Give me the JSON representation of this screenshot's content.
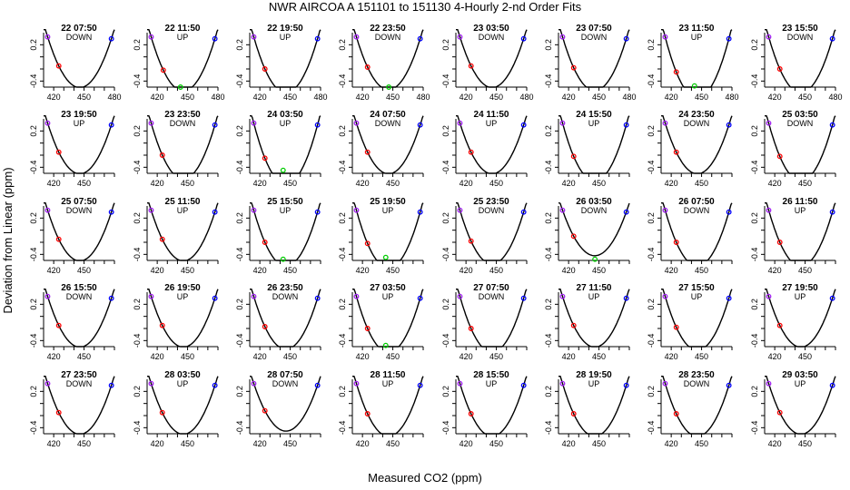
{
  "title": "NWR   AIRCOA A   151101 to 151130   4-Hourly 2-nd Order Fits",
  "xlabel": "Measured CO2 (ppm)",
  "ylabel": "Deviation from Linear (ppm)",
  "colors": {
    "curve": "#000000",
    "open_point_purple": "#a020f0",
    "open_point_red": "#ff0000",
    "open_point_blue": "#0000ff",
    "green_point": "#00cc00"
  },
  "chart_data": {
    "type": "scatter",
    "layout_grid": "5 rows x 8 columns of small multiples",
    "ylim": [
      -0.5,
      0.4
    ],
    "yticks": [
      -0.4,
      0.2
    ],
    "x_ticks_wide": [
      420,
      450,
      480
    ],
    "x_ticks_narrow": [
      420,
      450
    ],
    "panels": [
      {
        "title": "22 07:50",
        "direction": "DOWN",
        "xlim": [
          410,
          480
        ],
        "xticks": [
          420,
          450,
          480
        ],
        "points": [
          [
            414,
            0.33
          ],
          [
            425,
            -0.15
          ],
          [
            477,
            0.3
          ]
        ]
      },
      {
        "title": "22 11:50",
        "direction": "UP",
        "xlim": [
          410,
          480
        ],
        "xticks": [
          420,
          450,
          480
        ],
        "points": [
          [
            414,
            0.33
          ],
          [
            426,
            -0.22
          ],
          [
            443,
            -0.5
          ],
          [
            477,
            0.3
          ]
        ]
      },
      {
        "title": "22 19:50",
        "direction": "UP",
        "xlim": [
          410,
          480
        ],
        "xticks": [
          420,
          450,
          480
        ],
        "points": [
          [
            414,
            0.33
          ],
          [
            425,
            -0.2
          ],
          [
            477,
            0.3
          ]
        ]
      },
      {
        "title": "22 23:50",
        "direction": "DOWN",
        "xlim": [
          410,
          480
        ],
        "xticks": [
          420,
          450,
          480
        ],
        "points": [
          [
            414,
            0.33
          ],
          [
            425,
            -0.17
          ],
          [
            446,
            -0.5
          ],
          [
            477,
            0.3
          ]
        ]
      },
      {
        "title": "23 03:50",
        "direction": "DOWN",
        "xlim": [
          410,
          480
        ],
        "xticks": [
          420,
          450,
          480
        ],
        "points": [
          [
            414,
            0.33
          ],
          [
            425,
            -0.15
          ],
          [
            477,
            0.3
          ]
        ]
      },
      {
        "title": "23 07:50",
        "direction": "DOWN",
        "xlim": [
          410,
          480
        ],
        "xticks": [
          420,
          450,
          480
        ],
        "points": [
          [
            414,
            0.33
          ],
          [
            425,
            -0.18
          ],
          [
            477,
            0.3
          ]
        ]
      },
      {
        "title": "23 11:50",
        "direction": "UP",
        "xlim": [
          410,
          480
        ],
        "xticks": [
          420,
          450,
          480
        ],
        "points": [
          [
            414,
            0.33
          ],
          [
            425,
            -0.25
          ],
          [
            443,
            -0.48
          ],
          [
            477,
            0.3
          ]
        ]
      },
      {
        "title": "23 15:50",
        "direction": "DOWN",
        "xlim": [
          410,
          480
        ],
        "xticks": [
          420,
          450,
          480
        ],
        "points": [
          [
            414,
            0.33
          ],
          [
            425,
            -0.2
          ],
          [
            477,
            0.3
          ]
        ]
      },
      {
        "title": "23 19:50",
        "direction": "UP",
        "xlim": [
          410,
          480
        ],
        "xticks": [
          420,
          450
        ],
        "points": [
          [
            414,
            0.33
          ],
          [
            425,
            -0.15
          ],
          [
            477,
            0.3
          ]
        ]
      },
      {
        "title": "23 23:50",
        "direction": "DOWN",
        "xlim": [
          410,
          480
        ],
        "xticks": [
          420,
          450
        ],
        "points": [
          [
            414,
            0.33
          ],
          [
            425,
            -0.2
          ],
          [
            477,
            0.3
          ]
        ]
      },
      {
        "title": "24 03:50",
        "direction": "UP",
        "xlim": [
          410,
          480
        ],
        "xticks": [
          420,
          450
        ],
        "points": [
          [
            414,
            0.33
          ],
          [
            425,
            -0.25
          ],
          [
            443,
            -0.45
          ],
          [
            477,
            0.3
          ]
        ]
      },
      {
        "title": "24 07:50",
        "direction": "DOWN",
        "xlim": [
          410,
          480
        ],
        "xticks": [
          420,
          450
        ],
        "points": [
          [
            414,
            0.33
          ],
          [
            425,
            -0.15
          ],
          [
            477,
            0.3
          ]
        ]
      },
      {
        "title": "24 11:50",
        "direction": "UP",
        "xlim": [
          410,
          480
        ],
        "xticks": [
          420,
          450
        ],
        "points": [
          [
            414,
            0.33
          ],
          [
            425,
            -0.15
          ],
          [
            477,
            0.3
          ]
        ]
      },
      {
        "title": "24 15:50",
        "direction": "UP",
        "xlim": [
          410,
          480
        ],
        "xticks": [
          420,
          450
        ],
        "points": [
          [
            414,
            0.33
          ],
          [
            425,
            -0.22
          ],
          [
            477,
            0.3
          ]
        ]
      },
      {
        "title": "24 23:50",
        "direction": "DOWN",
        "xlim": [
          410,
          480
        ],
        "xticks": [
          420,
          450
        ],
        "points": [
          [
            414,
            0.33
          ],
          [
            425,
            -0.15
          ],
          [
            477,
            0.3
          ]
        ]
      },
      {
        "title": "25 03:50",
        "direction": "DOWN",
        "xlim": [
          410,
          480
        ],
        "xticks": [
          420,
          450
        ],
        "points": [
          [
            414,
            0.33
          ],
          [
            425,
            -0.22
          ],
          [
            477,
            0.3
          ]
        ]
      },
      {
        "title": "25 07:50",
        "direction": "DOWN",
        "xlim": [
          410,
          480
        ],
        "xticks": [
          420,
          450
        ],
        "points": [
          [
            414,
            0.33
          ],
          [
            425,
            -0.15
          ],
          [
            477,
            0.3
          ]
        ]
      },
      {
        "title": "25 11:50",
        "direction": "UP",
        "xlim": [
          410,
          480
        ],
        "xticks": [
          420,
          450
        ],
        "points": [
          [
            414,
            0.33
          ],
          [
            425,
            -0.15
          ],
          [
            477,
            0.3
          ]
        ]
      },
      {
        "title": "25 15:50",
        "direction": "UP",
        "xlim": [
          410,
          480
        ],
        "xticks": [
          420,
          450
        ],
        "points": [
          [
            414,
            0.33
          ],
          [
            425,
            -0.2
          ],
          [
            443,
            -0.48
          ],
          [
            477,
            0.3
          ]
        ]
      },
      {
        "title": "25 19:50",
        "direction": "UP",
        "xlim": [
          410,
          480
        ],
        "xticks": [
          420,
          450
        ],
        "points": [
          [
            414,
            0.33
          ],
          [
            425,
            -0.22
          ],
          [
            443,
            -0.45
          ],
          [
            477,
            0.3
          ]
        ]
      },
      {
        "title": "25 23:50",
        "direction": "DOWN",
        "xlim": [
          410,
          480
        ],
        "xticks": [
          420,
          450
        ],
        "points": [
          [
            414,
            0.33
          ],
          [
            425,
            -0.18
          ],
          [
            477,
            0.3
          ]
        ]
      },
      {
        "title": "26 03:50",
        "direction": "DOWN",
        "xlim": [
          410,
          480
        ],
        "xticks": [
          420,
          450
        ],
        "points": [
          [
            414,
            0.33
          ],
          [
            425,
            -0.1
          ],
          [
            446,
            -0.48
          ],
          [
            477,
            0.3
          ]
        ]
      },
      {
        "title": "26 07:50",
        "direction": "DOWN",
        "xlim": [
          410,
          480
        ],
        "xticks": [
          420,
          450
        ],
        "points": [
          [
            414,
            0.33
          ],
          [
            425,
            -0.2
          ],
          [
            477,
            0.3
          ]
        ]
      },
      {
        "title": "26 11:50",
        "direction": "UP",
        "xlim": [
          410,
          480
        ],
        "xticks": [
          420,
          450
        ],
        "points": [
          [
            414,
            0.33
          ],
          [
            425,
            -0.2
          ],
          [
            477,
            0.3
          ]
        ]
      },
      {
        "title": "26 15:50",
        "direction": "DOWN",
        "xlim": [
          410,
          480
        ],
        "xticks": [
          420,
          450
        ],
        "points": [
          [
            414,
            0.33
          ],
          [
            425,
            -0.15
          ],
          [
            477,
            0.3
          ]
        ]
      },
      {
        "title": "26 19:50",
        "direction": "UP",
        "xlim": [
          410,
          480
        ],
        "xticks": [
          420,
          450
        ],
        "points": [
          [
            414,
            0.33
          ],
          [
            425,
            -0.15
          ],
          [
            477,
            0.3
          ]
        ]
      },
      {
        "title": "26 23:50",
        "direction": "DOWN",
        "xlim": [
          410,
          480
        ],
        "xticks": [
          420,
          450
        ],
        "points": [
          [
            414,
            0.33
          ],
          [
            425,
            -0.17
          ],
          [
            477,
            0.3
          ]
        ]
      },
      {
        "title": "27 03:50",
        "direction": "UP",
        "xlim": [
          410,
          480
        ],
        "xticks": [
          420,
          450
        ],
        "points": [
          [
            414,
            0.33
          ],
          [
            425,
            -0.2
          ],
          [
            443,
            -0.48
          ],
          [
            477,
            0.3
          ]
        ]
      },
      {
        "title": "27 07:50",
        "direction": "DOWN",
        "xlim": [
          410,
          480
        ],
        "xticks": [
          420,
          450
        ],
        "points": [
          [
            414,
            0.33
          ],
          [
            425,
            -0.2
          ],
          [
            477,
            0.3
          ]
        ]
      },
      {
        "title": "27 11:50",
        "direction": "UP",
        "xlim": [
          410,
          480
        ],
        "xticks": [
          420,
          450
        ],
        "points": [
          [
            414,
            0.33
          ],
          [
            425,
            -0.15
          ],
          [
            477,
            0.3
          ]
        ]
      },
      {
        "title": "27 15:50",
        "direction": "UP",
        "xlim": [
          410,
          480
        ],
        "xticks": [
          420,
          450
        ],
        "points": [
          [
            414,
            0.33
          ],
          [
            425,
            -0.18
          ],
          [
            477,
            0.3
          ]
        ]
      },
      {
        "title": "27 19:50",
        "direction": "UP",
        "xlim": [
          410,
          480
        ],
        "xticks": [
          420,
          450
        ],
        "points": [
          [
            414,
            0.33
          ],
          [
            425,
            -0.15
          ],
          [
            477,
            0.3
          ]
        ]
      },
      {
        "title": "27 23:50",
        "direction": "DOWN",
        "xlim": [
          410,
          480
        ],
        "xticks": [
          420,
          450
        ],
        "points": [
          [
            414,
            0.33
          ],
          [
            425,
            -0.15
          ],
          [
            477,
            0.3
          ]
        ]
      },
      {
        "title": "28 03:50",
        "direction": "UP",
        "xlim": [
          410,
          480
        ],
        "xticks": [
          420,
          450
        ],
        "points": [
          [
            414,
            0.33
          ],
          [
            425,
            -0.15
          ],
          [
            477,
            0.3
          ]
        ]
      },
      {
        "title": "28 07:50",
        "direction": "DOWN",
        "xlim": [
          410,
          480
        ],
        "xticks": [
          420,
          450
        ],
        "points": [
          [
            414,
            0.33
          ],
          [
            425,
            -0.12
          ],
          [
            477,
            0.3
          ]
        ]
      },
      {
        "title": "28 11:50",
        "direction": "UP",
        "xlim": [
          410,
          480
        ],
        "xticks": [
          420,
          450
        ],
        "points": [
          [
            414,
            0.33
          ],
          [
            425,
            -0.17
          ],
          [
            477,
            0.3
          ]
        ]
      },
      {
        "title": "28 15:50",
        "direction": "UP",
        "xlim": [
          410,
          480
        ],
        "xticks": [
          420,
          450
        ],
        "points": [
          [
            414,
            0.33
          ],
          [
            425,
            -0.17
          ],
          [
            477,
            0.3
          ]
        ]
      },
      {
        "title": "28 19:50",
        "direction": "UP",
        "xlim": [
          410,
          480
        ],
        "xticks": [
          420,
          450
        ],
        "points": [
          [
            414,
            0.33
          ],
          [
            425,
            -0.17
          ],
          [
            477,
            0.3
          ]
        ]
      },
      {
        "title": "28 23:50",
        "direction": "DOWN",
        "xlim": [
          410,
          480
        ],
        "xticks": [
          420,
          450
        ],
        "points": [
          [
            414,
            0.33
          ],
          [
            425,
            -0.17
          ],
          [
            477,
            0.3
          ]
        ]
      },
      {
        "title": "29 03:50",
        "direction": "UP",
        "xlim": [
          410,
          480
        ],
        "xticks": [
          420,
          450
        ],
        "points": [
          [
            414,
            0.33
          ],
          [
            425,
            -0.15
          ],
          [
            477,
            0.3
          ]
        ]
      }
    ]
  }
}
